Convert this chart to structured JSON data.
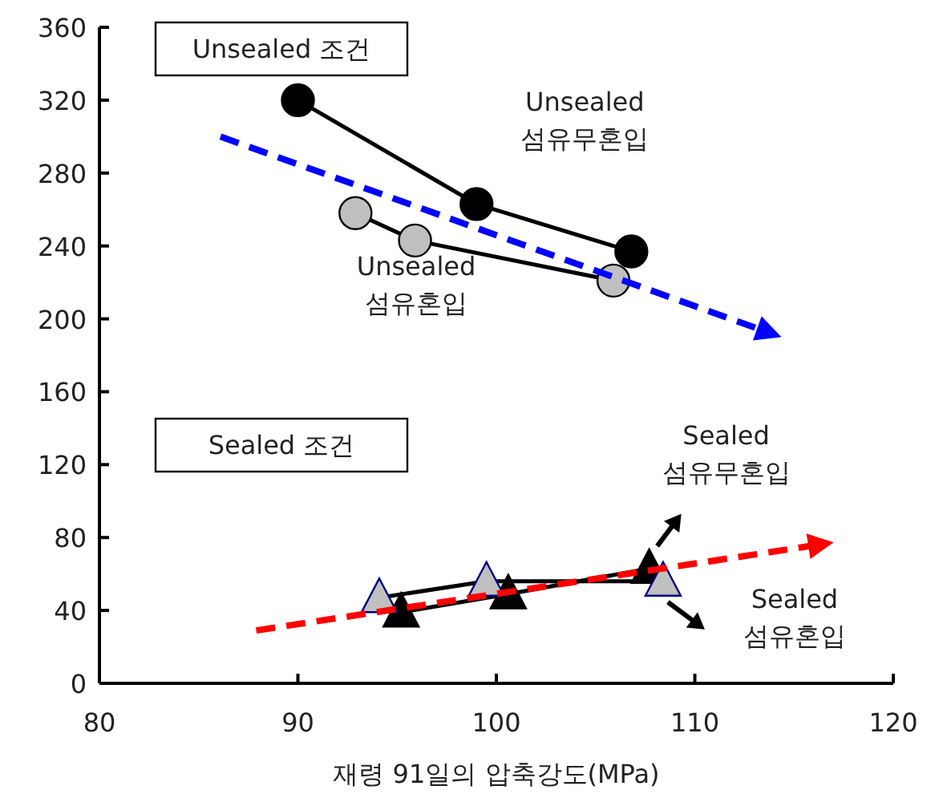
{
  "chart_data": {
    "type": "line",
    "xlabel": "재령 91일의 압축강도(MPa)",
    "xlim": [
      80,
      120
    ],
    "xticks": [
      80,
      90,
      100,
      110,
      120
    ],
    "ylim": [
      0,
      360
    ],
    "yticks": [
      0,
      40,
      80,
      120,
      160,
      200,
      240,
      280,
      320,
      360
    ],
    "grid": false,
    "annotations": [
      "Unsealed 조건",
      "Sealed 조건",
      "Unsealed\n섬유무혼입",
      "Unsealed\n섬유혼입",
      "Sealed\n섬유무혼입",
      "Sealed\n섬유혼입"
    ],
    "series": [
      {
        "color": "#000000",
        "marker": "circle",
        "line_style": "solid",
        "x": [
          90,
          99,
          106.8
        ],
        "values": [
          320,
          263,
          237
        ]
      },
      {
        "color": "#c0c0c0",
        "marker": "circle",
        "line_style": "solid",
        "x": [
          92.9,
          95.9,
          105.9
        ],
        "values": [
          258,
          243,
          221
        ]
      },
      {
        "color": "#0000ff",
        "line_style": "dashed",
        "x": [
          86.1,
          113.6
        ],
        "values": [
          300,
          193
        ]
      },
      {
        "color": "#000000",
        "marker": "triangle",
        "line_style": "solid",
        "x": [
          95.2,
          100.6,
          107.7
        ],
        "values": [
          39,
          49,
          63
        ]
      },
      {
        "color": "#c0c0c0",
        "marker": "triangle",
        "line_style": "solid",
        "x": [
          94.1,
          99.5,
          108.4
        ],
        "values": [
          47,
          56,
          56
        ]
      },
      {
        "color": "#ff0000",
        "line_style": "dashed",
        "x": [
          87.9,
          116.2
        ],
        "values": [
          29,
          76
        ]
      }
    ]
  }
}
